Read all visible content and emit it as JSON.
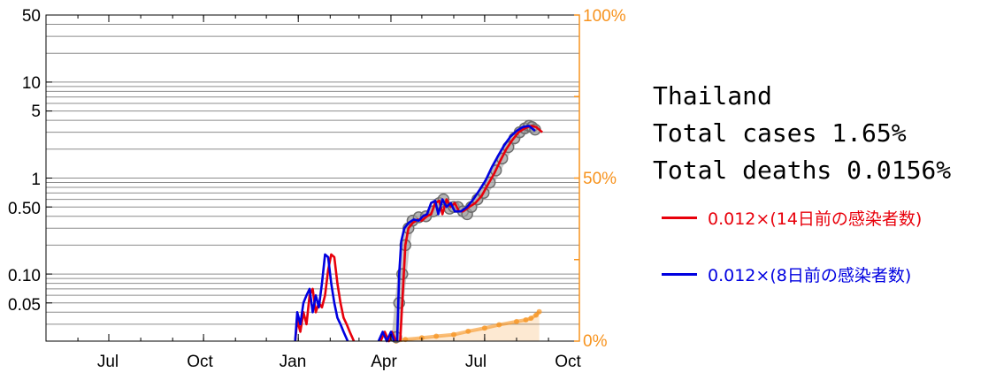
{
  "info": {
    "country": "Thailand",
    "total_cases": "Total cases 1.65%",
    "total_deaths": "Total deaths 0.0156%"
  },
  "legend": {
    "red_label": "0.012×(14日前の感染者数)",
    "blue_label": "0.012×(8日前の感染者数)"
  },
  "colors": {
    "red": "#e8000b",
    "blue": "#0000e0",
    "observed": "#808080",
    "orange": "#f7931e"
  },
  "chart_data": {
    "type": "line",
    "x_axis": {
      "ticks": [
        "Jul",
        "Oct",
        "Jan",
        "Apr",
        "Jul",
        "Oct"
      ],
      "tick_dates": [
        "2020-07-01",
        "2020-10-01",
        "2021-01-01",
        "2021-04-01",
        "2021-07-01",
        "2021-10-01"
      ],
      "range": [
        "2020-05-01",
        "2021-10-01"
      ]
    },
    "y_left": {
      "scale": "log",
      "ylim": [
        0.02,
        50
      ],
      "tick_labels": [
        "50",
        "10",
        "5",
        "1",
        "0.50",
        "0.10",
        "0.05"
      ],
      "tick_values": [
        50,
        10,
        5,
        1,
        0.5,
        0.1,
        0.05
      ]
    },
    "y_right": {
      "scale": "linear",
      "ylim": [
        0,
        100
      ],
      "tick_labels": [
        "100%",
        "50%",
        "0%"
      ],
      "tick_values": [
        100,
        50,
        0
      ]
    },
    "grid": true,
    "series": [
      {
        "key": "observed",
        "style": "circles",
        "points": [
          [
            "2021-04-06",
            0.022
          ],
          [
            "2021-04-09",
            0.05
          ],
          [
            "2021-04-12",
            0.1
          ],
          [
            "2021-04-15",
            0.2
          ],
          [
            "2021-04-18",
            0.3
          ],
          [
            "2021-04-22",
            0.36
          ],
          [
            "2021-04-28",
            0.39
          ],
          [
            "2021-05-05",
            0.4
          ],
          [
            "2021-05-12",
            0.45
          ],
          [
            "2021-05-18",
            0.55
          ],
          [
            "2021-05-22",
            0.6
          ],
          [
            "2021-05-28",
            0.48
          ],
          [
            "2021-06-01",
            0.5
          ],
          [
            "2021-06-05",
            0.5
          ],
          [
            "2021-06-10",
            0.45
          ],
          [
            "2021-06-14",
            0.42
          ],
          [
            "2021-06-18",
            0.5
          ],
          [
            "2021-06-24",
            0.6
          ],
          [
            "2021-06-30",
            0.7
          ],
          [
            "2021-07-06",
            0.9
          ],
          [
            "2021-07-12",
            1.2
          ],
          [
            "2021-07-18",
            1.6
          ],
          [
            "2021-07-24",
            2.1
          ],
          [
            "2021-07-30",
            2.6
          ],
          [
            "2021-08-04",
            3.0
          ],
          [
            "2021-08-09",
            3.3
          ],
          [
            "2021-08-13",
            3.5
          ],
          [
            "2021-08-16",
            3.4
          ],
          [
            "2021-08-19",
            3.2
          ]
        ]
      },
      {
        "key": "red",
        "style": "line",
        "segments": [
          [
            [
              "2020-12-29",
              0.02
            ],
            [
              "2020-12-31",
              0.033
            ],
            [
              "2021-01-03",
              0.025
            ],
            [
              "2021-01-06",
              0.04
            ],
            [
              "2021-01-09",
              0.03
            ],
            [
              "2021-01-12",
              0.06
            ],
            [
              "2021-01-15",
              0.07
            ],
            [
              "2021-01-18",
              0.04
            ],
            [
              "2021-01-21",
              0.05
            ],
            [
              "2021-01-24",
              0.045
            ],
            [
              "2021-01-27",
              0.06
            ],
            [
              "2021-01-30",
              0.11
            ],
            [
              "2021-02-02",
              0.16
            ],
            [
              "2021-02-05",
              0.15
            ],
            [
              "2021-02-08",
              0.08
            ],
            [
              "2021-02-11",
              0.05
            ],
            [
              "2021-02-14",
              0.035
            ],
            [
              "2021-02-17",
              0.03
            ],
            [
              "2021-02-20",
              0.025
            ],
            [
              "2021-02-24",
              0.02
            ]
          ],
          [
            [
              "2021-03-22",
              0.02
            ],
            [
              "2021-03-26",
              0.025
            ],
            [
              "2021-03-30",
              0.02
            ],
            [
              "2021-04-02",
              0.025
            ],
            [
              "2021-04-06",
              0.02
            ]
          ],
          [
            [
              "2021-04-10",
              0.02
            ],
            [
              "2021-04-13",
              0.08
            ],
            [
              "2021-04-15",
              0.2
            ],
            [
              "2021-04-18",
              0.3
            ],
            [
              "2021-04-22",
              0.34
            ],
            [
              "2021-04-27",
              0.37
            ],
            [
              "2021-05-01",
              0.36
            ],
            [
              "2021-05-06",
              0.4
            ],
            [
              "2021-05-10",
              0.42
            ],
            [
              "2021-05-14",
              0.55
            ],
            [
              "2021-05-18",
              0.58
            ],
            [
              "2021-05-21",
              0.42
            ],
            [
              "2021-05-25",
              0.6
            ],
            [
              "2021-05-29",
              0.5
            ],
            [
              "2021-06-02",
              0.55
            ],
            [
              "2021-06-06",
              0.45
            ],
            [
              "2021-06-10",
              0.45
            ],
            [
              "2021-06-16",
              0.5
            ],
            [
              "2021-06-22",
              0.55
            ],
            [
              "2021-06-28",
              0.65
            ],
            [
              "2021-07-04",
              0.85
            ],
            [
              "2021-07-10",
              1.1
            ],
            [
              "2021-07-16",
              1.5
            ],
            [
              "2021-07-22",
              2.0
            ],
            [
              "2021-07-28",
              2.5
            ],
            [
              "2021-08-03",
              3.0
            ],
            [
              "2021-08-09",
              3.3
            ],
            [
              "2021-08-15",
              3.5
            ],
            [
              "2021-08-20",
              3.4
            ],
            [
              "2021-08-26",
              3.0
            ]
          ]
        ]
      },
      {
        "key": "blue",
        "style": "line",
        "segments": [
          [
            [
              "2020-12-29",
              0.02
            ],
            [
              "2020-12-31",
              0.04
            ],
            [
              "2021-01-03",
              0.03
            ],
            [
              "2021-01-06",
              0.05
            ],
            [
              "2021-01-09",
              0.06
            ],
            [
              "2021-01-12",
              0.07
            ],
            [
              "2021-01-15",
              0.04
            ],
            [
              "2021-01-18",
              0.06
            ],
            [
              "2021-01-21",
              0.045
            ],
            [
              "2021-01-24",
              0.08
            ],
            [
              "2021-01-27",
              0.16
            ],
            [
              "2021-01-30",
              0.15
            ],
            [
              "2021-02-02",
              0.08
            ],
            [
              "2021-02-05",
              0.05
            ],
            [
              "2021-02-08",
              0.035
            ],
            [
              "2021-02-11",
              0.03
            ],
            [
              "2021-02-14",
              0.025
            ],
            [
              "2021-02-18",
              0.02
            ]
          ],
          [
            [
              "2021-03-20",
              0.02
            ],
            [
              "2021-03-24",
              0.025
            ],
            [
              "2021-03-28",
              0.02
            ],
            [
              "2021-04-01",
              0.025
            ],
            [
              "2021-04-04",
              0.02
            ]
          ],
          [
            [
              "2021-04-07",
              0.02
            ],
            [
              "2021-04-09",
              0.1
            ],
            [
              "2021-04-11",
              0.22
            ],
            [
              "2021-04-14",
              0.3
            ],
            [
              "2021-04-18",
              0.34
            ],
            [
              "2021-04-23",
              0.37
            ],
            [
              "2021-04-28",
              0.36
            ],
            [
              "2021-05-02",
              0.4
            ],
            [
              "2021-05-06",
              0.42
            ],
            [
              "2021-05-10",
              0.55
            ],
            [
              "2021-05-14",
              0.58
            ],
            [
              "2021-05-17",
              0.42
            ],
            [
              "2021-05-21",
              0.6
            ],
            [
              "2021-05-25",
              0.5
            ],
            [
              "2021-05-29",
              0.55
            ],
            [
              "2021-06-02",
              0.45
            ],
            [
              "2021-06-08",
              0.45
            ],
            [
              "2021-06-14",
              0.5
            ],
            [
              "2021-06-20",
              0.6
            ],
            [
              "2021-06-26",
              0.75
            ],
            [
              "2021-07-02",
              0.95
            ],
            [
              "2021-07-08",
              1.3
            ],
            [
              "2021-07-14",
              1.7
            ],
            [
              "2021-07-20",
              2.2
            ],
            [
              "2021-07-26",
              2.7
            ],
            [
              "2021-08-01",
              3.1
            ],
            [
              "2021-08-07",
              3.4
            ],
            [
              "2021-08-13",
              3.5
            ],
            [
              "2021-08-19",
              3.1
            ]
          ]
        ]
      },
      {
        "key": "orange",
        "style": "area",
        "axis": "right",
        "points": [
          [
            "2021-04-06",
            0
          ],
          [
            "2021-04-15",
            0.5
          ],
          [
            "2021-05-01",
            1
          ],
          [
            "2021-05-15",
            1.5
          ],
          [
            "2021-06-01",
            2
          ],
          [
            "2021-06-15",
            3
          ],
          [
            "2021-07-01",
            4
          ],
          [
            "2021-07-15",
            5
          ],
          [
            "2021-08-01",
            6
          ],
          [
            "2021-08-10",
            6.5
          ],
          [
            "2021-08-15",
            7
          ],
          [
            "2021-08-20",
            8
          ],
          [
            "2021-08-23",
            9
          ]
        ]
      }
    ]
  }
}
